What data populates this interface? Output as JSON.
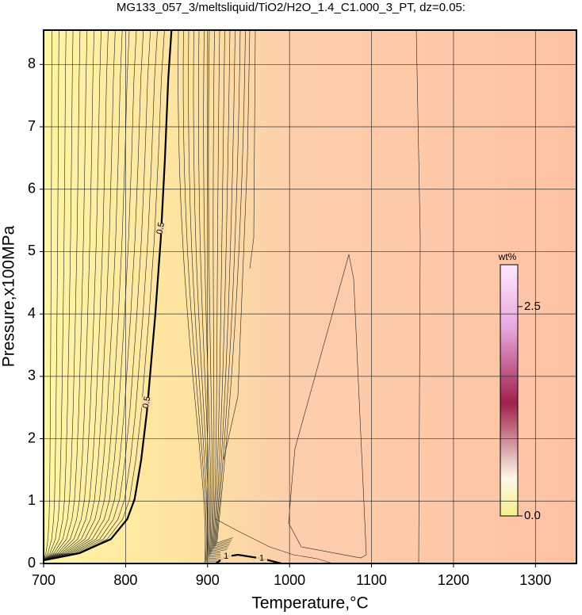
{
  "chart_data": {
    "type": "contour",
    "title": "MG133_057_3/meltsliquid/TiO2/H2O_1.4_C1.000_3_PT, dz=0.05:",
    "x_label": "Temperature,°C",
    "y_label": "Pressure,x100MPa",
    "xlim": [
      700,
      1350
    ],
    "xticks": [
      700,
      800,
      900,
      1000,
      1100,
      1200,
      1300
    ],
    "ylim": [
      0,
      8.55
    ],
    "yticks": [
      0,
      1,
      2,
      3,
      4,
      5,
      6,
      7,
      8
    ],
    "grid": true,
    "contours": [
      {
        "level": 0.5,
        "color": "#000000",
        "x": [
          700,
          743.6,
          782,
          802,
          811,
          819,
          826,
          836,
          843,
          848,
          852,
          856
        ],
        "y": [
          0.05,
          0.165,
          0.39,
          0.71,
          1.03,
          1.66,
          2.43,
          3.95,
          5.22,
          6.49,
          7.76,
          8.55
        ]
      },
      {
        "level": 1,
        "color": "#000000",
        "x": [
          910,
          922.6,
          937,
          966,
          990
        ],
        "y": [
          0,
          0.11,
          0.14,
          0.08,
          0
        ]
      }
    ],
    "colorbar": {
      "label": "wt%",
      "clim": [
        0,
        3.0
      ],
      "ticks": [
        {
          "value": 0,
          "label": "0.0"
        },
        {
          "value": 2.5,
          "label": "2.5"
        }
      ]
    }
  }
}
